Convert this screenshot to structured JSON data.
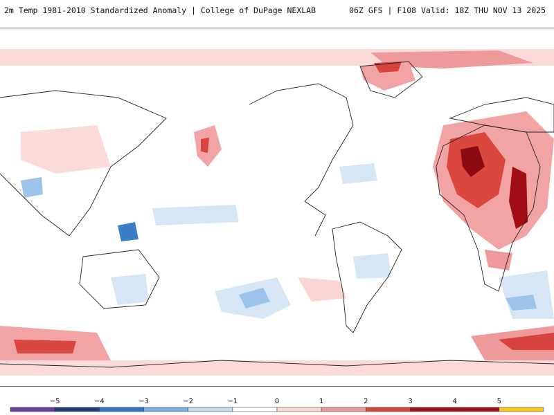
{
  "header": {
    "title": "2m Temp 1981-2010 Standardized Anomaly | College of DuPage NEXLAB",
    "run_info": "06Z GFS | F108 Valid: 18Z THU NOV 13 2025"
  },
  "colorbar": {
    "tick_labels": [
      "-5",
      "-4",
      "-3",
      "-2",
      "-1",
      "0",
      "1",
      "2",
      "3",
      "4",
      "5"
    ],
    "colors": [
      "#6a3d9a",
      "#1f3c78",
      "#2e73c2",
      "#78aee3",
      "#c5dcf2",
      "#ffffff",
      "#fbd4d4",
      "#ef9a9a",
      "#d7443f",
      "#a10d15",
      "#f5c518"
    ]
  },
  "map": {
    "projection": "cylindrical equidistant",
    "anomaly_colors": {
      "warm_light": "#fbdada",
      "warm_mid": "#f2a4a4",
      "warm_strong": "#d9473f",
      "warm_extreme": "#8c0a12",
      "cold_light": "#d6e6f5",
      "cold_mid": "#9cc3ea",
      "cold_strong": "#3a7ec8",
      "land_outline": "#222222"
    }
  }
}
